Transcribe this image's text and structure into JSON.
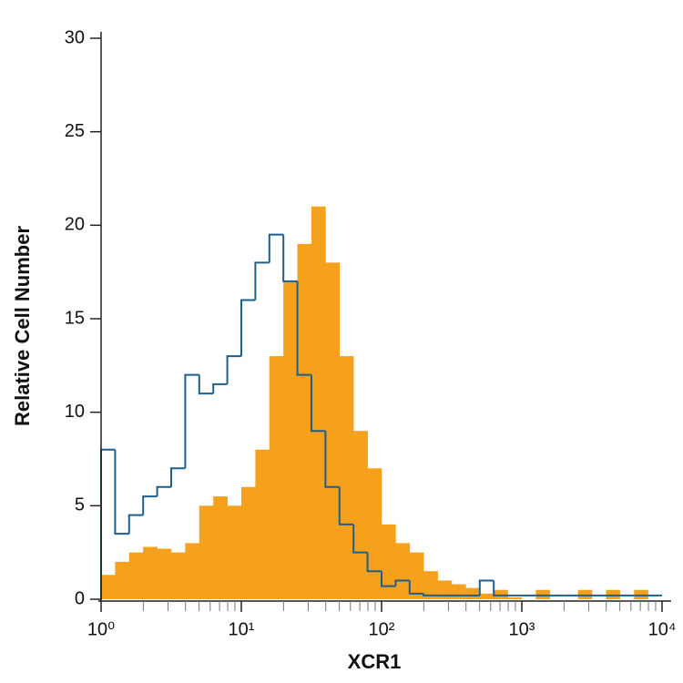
{
  "chart_data": {
    "type": "histogram",
    "x_label": "XCR1",
    "y_label": "Relative Cell Number",
    "xscale": "log",
    "xlim": [
      1,
      10000
    ],
    "ylim": [
      0,
      30
    ],
    "yticks": [
      0,
      5,
      10,
      15,
      20,
      25,
      30
    ],
    "xticks": [
      {
        "value": 1,
        "label": "10⁰"
      },
      {
        "value": 10,
        "label": "10¹"
      },
      {
        "value": 100,
        "label": "10²"
      },
      {
        "value": 1000,
        "label": "10³"
      },
      {
        "value": 10000,
        "label": "10⁴"
      }
    ],
    "xminor_ticks": [
      2,
      3,
      4,
      5,
      6,
      7,
      8,
      9,
      20,
      30,
      40,
      50,
      60,
      70,
      80,
      90,
      200,
      300,
      400,
      500,
      600,
      700,
      800,
      900,
      2000,
      3000,
      4000,
      5000,
      6000,
      7000,
      8000,
      9000
    ],
    "bins": [
      1,
      1.259,
      1.585,
      1.995,
      2.512,
      3.162,
      3.981,
      5.012,
      6.31,
      7.943,
      10,
      12.59,
      15.85,
      19.95,
      25.12,
      31.62,
      39.81,
      50.12,
      63.1,
      79.43,
      100,
      125.9,
      158.5,
      199.5,
      251.2,
      316.2,
      398.1,
      501.2,
      631,
      794.3,
      1000,
      1259,
      1585,
      1995,
      2512,
      3162,
      3981,
      5012,
      6310,
      7943,
      10000
    ],
    "series": [
      {
        "color": "#f5a11c",
        "style": "filled",
        "values": [
          1.3,
          2,
          2.5,
          2.8,
          2.7,
          2.5,
          3,
          5,
          5.5,
          5,
          6,
          8,
          13,
          17,
          19,
          21,
          18,
          13,
          9,
          7,
          4,
          3,
          2.5,
          1.5,
          1,
          0.8,
          0.6,
          0.3,
          0.5,
          0.1,
          0,
          0.5,
          0,
          0,
          0.5,
          0,
          0.5,
          0,
          0.5,
          0
        ]
      },
      {
        "color": "#1f5f8b",
        "style": "outline",
        "values": [
          8,
          3.5,
          4.5,
          5.5,
          6,
          7,
          12,
          11,
          11.5,
          13,
          16,
          18,
          19.5,
          17,
          12,
          9,
          6,
          4,
          2.5,
          1.5,
          0.7,
          1,
          0.3,
          0.2,
          0.2,
          0.2,
          0.2,
          1,
          0.2,
          0.2,
          0.2,
          0.2,
          0.2,
          0.2,
          0.2,
          0.2,
          0.2,
          0.2,
          0.2,
          0.2
        ]
      }
    ]
  }
}
